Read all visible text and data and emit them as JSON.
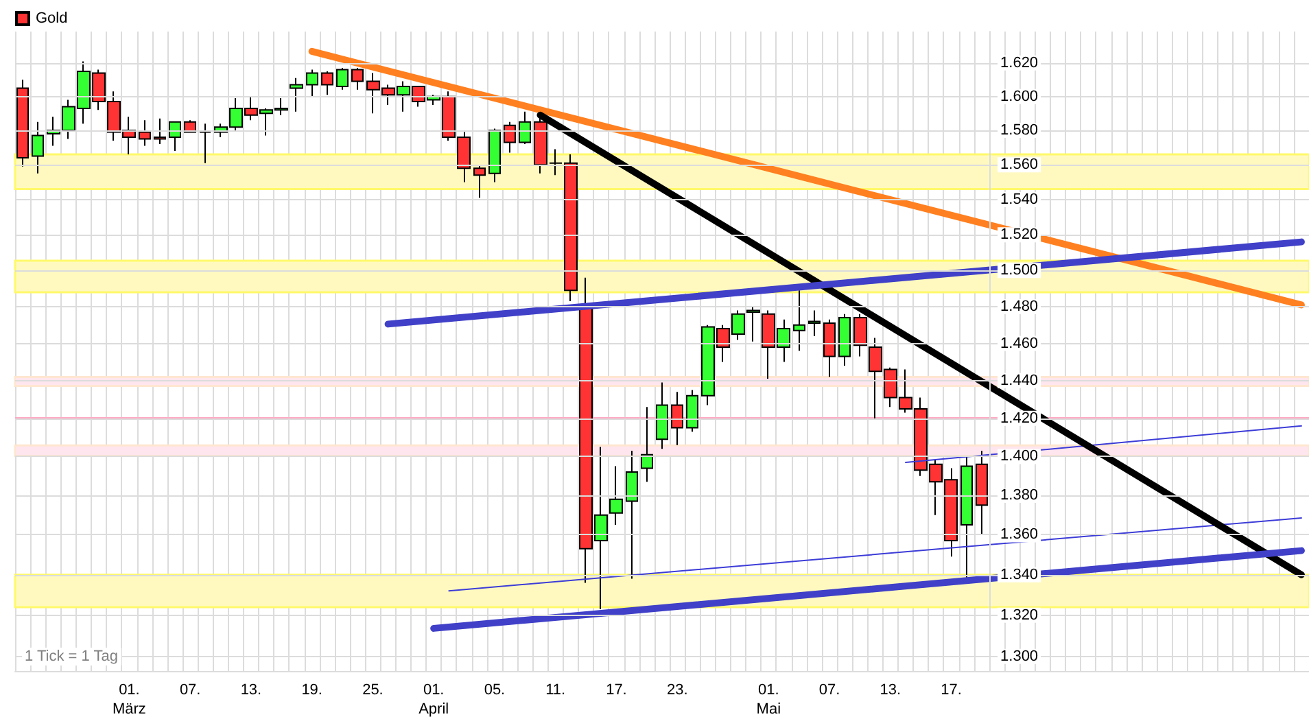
{
  "chart_data": {
    "type": "candlestick",
    "categories": [
      null,
      null,
      null,
      null,
      null,
      null,
      null,
      "01.\nMärz",
      null,
      null,
      null,
      "07.",
      null,
      null,
      null,
      "13.",
      null,
      null,
      null,
      "19.",
      null,
      null,
      null,
      "25.",
      null,
      null,
      null,
      "01.\nApril",
      null,
      null,
      null,
      "05.",
      null,
      null,
      null,
      "11.",
      null,
      null,
      null,
      "17.",
      null,
      null,
      null,
      "23.",
      null,
      null,
      null,
      null,
      null,
      "01.\nMai",
      null,
      null,
      null,
      "07.",
      null,
      null,
      null,
      "13.",
      null,
      null,
      null,
      "17.",
      null,
      null,
      null,
      null,
      null,
      null,
      null,
      null,
      null,
      null,
      null,
      null,
      null,
      null,
      null,
      null,
      null,
      null,
      null,
      null,
      null,
      null,
      null
    ],
    "series": [
      {
        "name": "Gold",
        "color": "#ff3333",
        "ohlc": [
          [
            1.605,
            1.61,
            1.559,
            1.564
          ],
          [
            1.565,
            1.585,
            1.555,
            1.577
          ],
          [
            1.578,
            1.588,
            1.571,
            1.58
          ],
          [
            1.58,
            1.598,
            1.575,
            1.594
          ],
          [
            1.593,
            1.621,
            1.584,
            1.615
          ],
          [
            1.614,
            1.616,
            1.592,
            1.597
          ],
          [
            1.597,
            1.603,
            1.574,
            1.579
          ],
          [
            1.58,
            1.588,
            1.566,
            1.576
          ],
          [
            1.579,
            1.586,
            1.571,
            1.575
          ],
          [
            1.576,
            1.587,
            1.572,
            1.575
          ],
          [
            1.576,
            1.585,
            1.568,
            1.585
          ],
          [
            1.585,
            1.586,
            1.579,
            1.579
          ],
          [
            1.579,
            1.584,
            1.561,
            1.579
          ],
          [
            1.579,
            1.584,
            1.576,
            1.582
          ],
          [
            1.582,
            1.599,
            1.58,
            1.593
          ],
          [
            1.593,
            1.6,
            1.586,
            1.589
          ],
          [
            1.59,
            1.593,
            1.577,
            1.592
          ],
          [
            1.592,
            1.599,
            1.589,
            1.593
          ],
          [
            1.605,
            1.611,
            1.591,
            1.607
          ],
          [
            1.607,
            1.616,
            1.6,
            1.614
          ],
          [
            1.614,
            1.615,
            1.601,
            1.607
          ],
          [
            1.606,
            1.617,
            1.604,
            1.616
          ],
          [
            1.616,
            1.617,
            1.604,
            1.609
          ],
          [
            1.609,
            1.614,
            1.59,
            1.604
          ],
          [
            1.605,
            1.607,
            1.595,
            1.601
          ],
          [
            1.601,
            1.609,
            1.591,
            1.606
          ],
          [
            1.606,
            1.606,
            1.594,
            1.597
          ],
          [
            1.598,
            1.601,
            1.595,
            1.6
          ],
          [
            1.6,
            1.603,
            1.574,
            1.576
          ],
          [
            1.576,
            1.579,
            1.55,
            1.558
          ],
          [
            1.558,
            1.56,
            1.541,
            1.554
          ],
          [
            1.555,
            1.581,
            1.55,
            1.58
          ],
          [
            1.583,
            1.585,
            1.567,
            1.573
          ],
          [
            1.573,
            1.591,
            1.572,
            1.585
          ],
          [
            1.585,
            1.59,
            1.555,
            1.56
          ],
          [
            1.561,
            1.569,
            1.554,
            1.561
          ],
          [
            1.561,
            1.566,
            1.483,
            1.489
          ],
          [
            1.479,
            1.496,
            1.336,
            1.353
          ],
          [
            1.357,
            1.405,
            1.323,
            1.37
          ],
          [
            1.371,
            1.395,
            1.365,
            1.378
          ],
          [
            1.377,
            1.403,
            1.338,
            1.392
          ],
          [
            1.394,
            1.426,
            1.387,
            1.401
          ],
          [
            1.409,
            1.439,
            1.404,
            1.427
          ],
          [
            1.427,
            1.434,
            1.406,
            1.415
          ],
          [
            1.415,
            1.435,
            1.413,
            1.432
          ],
          [
            1.432,
            1.47,
            1.427,
            1.469
          ],
          [
            1.468,
            1.47,
            1.45,
            1.458
          ],
          [
            1.465,
            1.478,
            1.462,
            1.476
          ],
          [
            1.477,
            1.48,
            1.461,
            1.478
          ],
          [
            1.476,
            1.478,
            1.441,
            1.458
          ],
          [
            1.458,
            1.473,
            1.45,
            1.468
          ],
          [
            1.467,
            1.489,
            1.456,
            1.47
          ],
          [
            1.471,
            1.478,
            1.464,
            1.472
          ],
          [
            1.471,
            1.473,
            1.442,
            1.453
          ],
          [
            1.453,
            1.476,
            1.448,
            1.474
          ],
          [
            1.474,
            1.476,
            1.453,
            1.459
          ],
          [
            1.458,
            1.463,
            1.42,
            1.445
          ],
          [
            1.446,
            1.447,
            1.426,
            1.431
          ],
          [
            1.431,
            1.446,
            1.423,
            1.425
          ],
          [
            1.425,
            1.431,
            1.39,
            1.393
          ],
          [
            1.396,
            1.398,
            1.37,
            1.387
          ],
          [
            1.388,
            1.394,
            1.349,
            1.357
          ],
          [
            1.365,
            1.4,
            1.338,
            1.395
          ],
          [
            1.396,
            1.403,
            1.36,
            1.375
          ],
          null,
          null,
          null,
          null,
          null,
          null,
          null,
          null,
          null,
          null,
          null,
          null,
          null,
          null,
          null,
          null,
          null,
          null,
          null,
          null,
          null
        ],
        "colors": [
          "#ff3333",
          "#33ff33",
          "#33ff33",
          "#33ff33",
          "#33ff33",
          "#ff3333",
          "#ff3333",
          "#ff3333",
          "#ff3333",
          "#ff3333",
          "#33ff33",
          "#ff3333",
          "#000000",
          "#33ff33",
          "#33ff33",
          "#ff3333",
          "#33ff33",
          "#33ff33",
          "#33ff33",
          "#33ff33",
          "#ff3333",
          "#33ff33",
          "#ff3333",
          "#ff3333",
          "#ff3333",
          "#33ff33",
          "#ff3333",
          "#33ff33",
          "#ff3333",
          "#ff3333",
          "#ff3333",
          "#33ff33",
          "#ff3333",
          "#33ff33",
          "#ff3333",
          "#000000",
          "#ff3333",
          "#ff3333",
          "#33ff33",
          "#33ff33",
          "#33ff33",
          "#33ff33",
          "#33ff33",
          "#ff3333",
          "#33ff33",
          "#33ff33",
          "#ff3333",
          "#33ff33",
          "#33ff33",
          "#ff3333",
          "#33ff33",
          "#33ff33",
          "#33ff33",
          "#ff3333",
          "#33ff33",
          "#ff3333",
          "#ff3333",
          "#ff3333",
          "#ff3333",
          "#ff3333",
          "#ff3333",
          "#ff3333",
          "#33ff33",
          "#ff3333",
          null,
          null,
          null,
          null,
          null,
          null,
          null,
          null,
          null,
          null,
          null,
          null,
          null,
          null,
          null,
          null,
          null,
          null,
          null,
          null,
          null
        ]
      },
      {
        "type": "line",
        "color": "#ff8020",
        "values": [
          null,
          null,
          null,
          null,
          null,
          null,
          null,
          null,
          null,
          null,
          null,
          null,
          null,
          null,
          null,
          null,
          null,
          null,
          null,
          1.627,
          null,
          null,
          null,
          null,
          null,
          null,
          null,
          null,
          null,
          null,
          null,
          null,
          null,
          null,
          null,
          null,
          null,
          null,
          null,
          null,
          null,
          null,
          null,
          null,
          null,
          null,
          null,
          null,
          null,
          null,
          null,
          null,
          null,
          null,
          null,
          null,
          null,
          null,
          null,
          null,
          null,
          null,
          null,
          null,
          null,
          null,
          null,
          null,
          null,
          null,
          null,
          null,
          null,
          null,
          null,
          null,
          null,
          null,
          null,
          null,
          null,
          null,
          null,
          null,
          1.481
        ]
      },
      {
        "type": "line",
        "color": "#000000",
        "values": [
          null,
          null,
          null,
          null,
          null,
          null,
          null,
          null,
          null,
          null,
          null,
          null,
          null,
          null,
          null,
          null,
          null,
          null,
          null,
          null,
          null,
          null,
          null,
          null,
          null,
          null,
          null,
          null,
          null,
          null,
          null,
          null,
          null,
          null,
          1.589,
          null,
          null,
          null,
          null,
          null,
          null,
          null,
          null,
          null,
          null,
          null,
          null,
          null,
          null,
          null,
          null,
          null,
          null,
          null,
          null,
          null,
          null,
          null,
          null,
          null,
          null,
          null,
          null,
          null,
          null,
          null,
          null,
          null,
          null,
          null,
          null,
          null,
          null,
          null,
          null,
          null,
          null,
          null,
          null,
          null,
          null,
          null,
          null,
          null,
          1.34
        ]
      },
      {
        "type": "line",
        "color": "#4040c8",
        "values": [
          null,
          null,
          null,
          null,
          null,
          null,
          null,
          null,
          null,
          null,
          null,
          null,
          null,
          null,
          null,
          null,
          null,
          null,
          null,
          null,
          null,
          null,
          null,
          null,
          1.4705,
          null,
          null,
          null,
          null,
          null,
          null,
          null,
          null,
          null,
          null,
          null,
          null,
          null,
          null,
          null,
          null,
          null,
          null,
          null,
          null,
          null,
          null,
          null,
          null,
          null,
          null,
          null,
          null,
          null,
          null,
          null,
          null,
          null,
          null,
          null,
          null,
          null,
          null,
          null,
          null,
          null,
          null,
          null,
          null,
          null,
          null,
          null,
          null,
          null,
          null,
          null,
          null,
          null,
          null,
          null,
          null,
          null,
          null,
          null,
          1.516
        ]
      },
      {
        "type": "line",
        "color": "#4040c8",
        "values": [
          null,
          null,
          null,
          null,
          null,
          null,
          null,
          null,
          null,
          null,
          null,
          null,
          null,
          null,
          null,
          null,
          null,
          null,
          null,
          null,
          null,
          null,
          null,
          null,
          null,
          null,
          null,
          1.3136,
          null,
          null,
          null,
          null,
          null,
          null,
          null,
          null,
          null,
          null,
          null,
          null,
          null,
          null,
          null,
          null,
          null,
          null,
          null,
          null,
          null,
          null,
          null,
          null,
          null,
          null,
          null,
          null,
          null,
          null,
          null,
          null,
          null,
          null,
          null,
          null,
          null,
          null,
          null,
          null,
          null,
          null,
          null,
          null,
          null,
          null,
          null,
          null,
          null,
          null,
          null,
          null,
          null,
          null,
          null,
          null,
          1.352
        ]
      },
      {
        "type": "line",
        "color": "#3c3cd8",
        "values": [
          null,
          null,
          null,
          null,
          null,
          null,
          null,
          null,
          null,
          null,
          null,
          null,
          null,
          null,
          null,
          null,
          null,
          null,
          null,
          null,
          null,
          null,
          null,
          null,
          null,
          null,
          null,
          null,
          1.332,
          null,
          null,
          null,
          null,
          null,
          null,
          null,
          null,
          null,
          null,
          null,
          null,
          null,
          null,
          null,
          null,
          null,
          null,
          null,
          null,
          null,
          null,
          null,
          null,
          null,
          null,
          null,
          null,
          null,
          null,
          null,
          null,
          null,
          null,
          null,
          null,
          null,
          null,
          null,
          null,
          null,
          null,
          null,
          null,
          null,
          null,
          null,
          null,
          null,
          null,
          null,
          null,
          null,
          null,
          null,
          1.3685
        ]
      },
      {
        "type": "line",
        "color": "#3c3cd8",
        "values": [
          null,
          null,
          null,
          null,
          null,
          null,
          null,
          null,
          null,
          null,
          null,
          null,
          null,
          null,
          null,
          null,
          null,
          null,
          null,
          null,
          null,
          null,
          null,
          null,
          null,
          null,
          null,
          null,
          null,
          null,
          null,
          null,
          null,
          null,
          null,
          null,
          null,
          null,
          null,
          null,
          null,
          null,
          null,
          null,
          null,
          null,
          null,
          null,
          null,
          null,
          null,
          null,
          null,
          null,
          null,
          null,
          null,
          null,
          1.397,
          null,
          null,
          null,
          null,
          null,
          null,
          null,
          null,
          null,
          null,
          null,
          null,
          null,
          null,
          null,
          null,
          null,
          null,
          null,
          null,
          null,
          null,
          null,
          null,
          null,
          1.416
        ]
      }
    ],
    "ylim": [
      1.293,
      1.639
    ],
    "yticks": [
      {
        "value": 1.3,
        "label": "1.300"
      },
      {
        "value": 1.32,
        "label": "1.320"
      },
      {
        "value": 1.34,
        "label": "1.340"
      },
      {
        "value": 1.36,
        "label": "1.360"
      },
      {
        "value": 1.38,
        "label": "1.380"
      },
      {
        "value": 1.4,
        "label": "1.400"
      },
      {
        "value": 1.42,
        "label": "1.420"
      },
      {
        "value": 1.44,
        "label": "1.440"
      },
      {
        "value": 1.46,
        "label": "1.460"
      },
      {
        "value": 1.48,
        "label": "1.480"
      },
      {
        "value": 1.5,
        "label": "1.500"
      },
      {
        "value": 1.52,
        "label": "1.520"
      },
      {
        "value": 1.54,
        "label": "1.540"
      },
      {
        "value": 1.56,
        "label": "1.560"
      },
      {
        "value": 1.58,
        "label": "1.580"
      },
      {
        "value": 1.6,
        "label": "1.600"
      },
      {
        "value": 1.62,
        "label": "1.620"
      }
    ],
    "log": true,
    "grid": true,
    "legend": "top left",
    "bands": [
      {
        "axis": "y",
        "from": 1.546,
        "to": 1.566,
        "color": "#fff9c0"
      },
      {
        "axis": "y",
        "from": 1.488,
        "to": 1.5055,
        "color": "#fff9c0"
      },
      {
        "axis": "y",
        "from": 1.324,
        "to": 1.34,
        "color": "#fff9c0"
      },
      {
        "axis": "y",
        "from": 1.4372,
        "to": 1.4419,
        "color": "#ffe6ee"
      },
      {
        "axis": "y",
        "from": 1.4004,
        "to": 1.4058,
        "color": "#ffe6ee"
      }
    ],
    "ref_lines": [
      {
        "axis": "y",
        "value": 1.4205,
        "color": "#ffaac4"
      }
    ],
    "annotations": [
      "1 Tick = 1 Tag"
    ]
  }
}
